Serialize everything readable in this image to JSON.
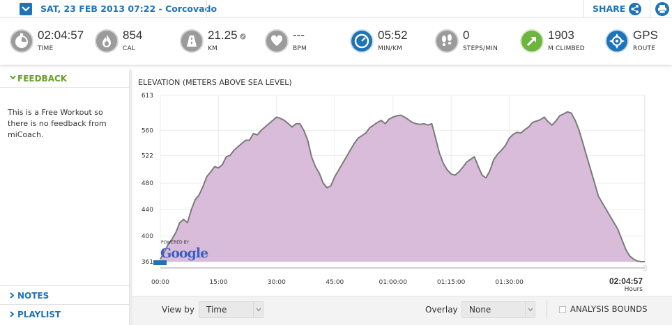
{
  "header": {
    "date_title": "SAT, 23 FEB 2013 07:22 - Corcovado",
    "share_label": "SHARE"
  },
  "stats": [
    {
      "value": "02:04:57",
      "unit": "TIME",
      "icon": "stopwatch-icon"
    },
    {
      "value": "854",
      "unit": "CAL",
      "icon": "flame-icon"
    },
    {
      "value": "21.25",
      "unit": "KM",
      "icon": "road-icon"
    },
    {
      "value": "---",
      "unit": "BPM",
      "icon": "heart-icon"
    },
    {
      "value": "05:52",
      "unit": "MIN/KM",
      "icon": "pace-gauge-icon"
    },
    {
      "value": "0",
      "unit": "STEPS/MIN",
      "icon": "footsteps-icon"
    },
    {
      "value": "1903",
      "unit": "M CLIMBED",
      "icon": "climb-arrow-icon"
    },
    {
      "value": "GPS",
      "unit": "ROUTE",
      "icon": "gps-route-icon"
    }
  ],
  "sidebar": {
    "feedback_label": "FEEDBACK",
    "feedback_text": "This is a Free Workout so there is no feedback from miCoach.",
    "notes_label": "NOTES",
    "playlist_label": "PLAYLIST"
  },
  "chart": {
    "title": "ELEVATION (METERS ABOVE SEA LEVEL)",
    "total_time": "02:04:57",
    "total_time_unit": "Hours",
    "powered_by": "POWERED BY",
    "google_logo": "Google"
  },
  "controls": {
    "view_by_label": "View by",
    "view_by_value": "Time",
    "overlay_label": "Overlay",
    "overlay_value": "None",
    "analysis_bounds_label": "ANALYSIS BOUNDS"
  },
  "colors": {
    "accent_blue": "#1f73b7",
    "feedback_green": "#6a9d2c",
    "fill_purple": "#d9bcd9",
    "line_grey": "#7a7a7a"
  },
  "chart_data": {
    "type": "area",
    "title": "ELEVATION (METERS ABOVE SEA LEVEL)",
    "xlabel": "Hours",
    "ylabel": "",
    "x_tick_labels": [
      "00:00",
      "15:00",
      "30:00",
      "45:00",
      "01:00:00",
      "01:15:00",
      "01:30:00"
    ],
    "x_tick_minutes": [
      0,
      15,
      30,
      45,
      60,
      75,
      90
    ],
    "x_end_label": "02:04:57",
    "xlim_minutes": [
      0,
      124.95
    ],
    "y_ticks": [
      361,
      400,
      440,
      480,
      522,
      560,
      613
    ],
    "ylim": [
      361,
      613
    ],
    "grid": true,
    "series": [
      {
        "x_minutes": [
          0,
          1,
          2,
          3,
          4,
          5,
          6,
          7,
          8,
          9,
          10,
          11,
          12,
          13,
          14,
          15,
          16,
          17,
          18,
          19,
          20,
          21,
          22,
          23,
          24,
          25,
          26,
          27,
          28,
          29,
          30,
          31,
          32,
          33,
          34,
          35,
          36,
          37,
          38,
          39,
          40,
          41,
          42,
          43,
          44,
          45,
          46,
          47,
          48,
          49,
          50,
          51,
          52,
          53,
          54,
          55,
          56,
          57,
          58,
          59,
          60,
          61,
          62,
          63,
          64,
          65,
          66,
          67,
          68,
          69,
          70,
          71,
          72,
          73,
          74,
          75,
          76,
          77,
          78,
          79,
          80,
          81,
          82,
          83,
          84,
          85,
          86,
          87,
          88,
          89,
          90,
          91,
          92,
          93,
          94,
          95,
          96,
          97,
          98,
          99,
          100,
          101,
          102,
          103,
          104,
          105,
          106,
          107,
          108,
          109,
          110,
          111,
          112,
          113,
          114,
          115,
          116,
          117,
          118,
          119,
          120,
          121,
          122,
          123,
          124,
          124.95
        ],
        "y": [
          365,
          375,
          387,
          395,
          405,
          420,
          425,
          420,
          440,
          455,
          462,
          475,
          490,
          497,
          505,
          503,
          508,
          520,
          522,
          530,
          535,
          540,
          545,
          545,
          555,
          553,
          560,
          565,
          570,
          575,
          580,
          578,
          575,
          570,
          565,
          570,
          570,
          560,
          545,
          520,
          505,
          495,
          480,
          473,
          476,
          490,
          500,
          510,
          520,
          530,
          540,
          548,
          552,
          556,
          564,
          568,
          572,
          575,
          570,
          577,
          580,
          582,
          583,
          580,
          576,
          572,
          570,
          569,
          570,
          568,
          570,
          548,
          525,
          510,
          500,
          494,
          492,
          497,
          504,
          512,
          516,
          520,
          505,
          492,
          488,
          499,
          516,
          524,
          530,
          537,
          548,
          554,
          557,
          556,
          561,
          565,
          572,
          574,
          576,
          580,
          573,
          568,
          574,
          582,
          585,
          588,
          586,
          575,
          560,
          540,
          520,
          500,
          480,
          460,
          450,
          440,
          430,
          420,
          410,
          395,
          380,
          370,
          365,
          362,
          361,
          361
        ]
      }
    ]
  }
}
